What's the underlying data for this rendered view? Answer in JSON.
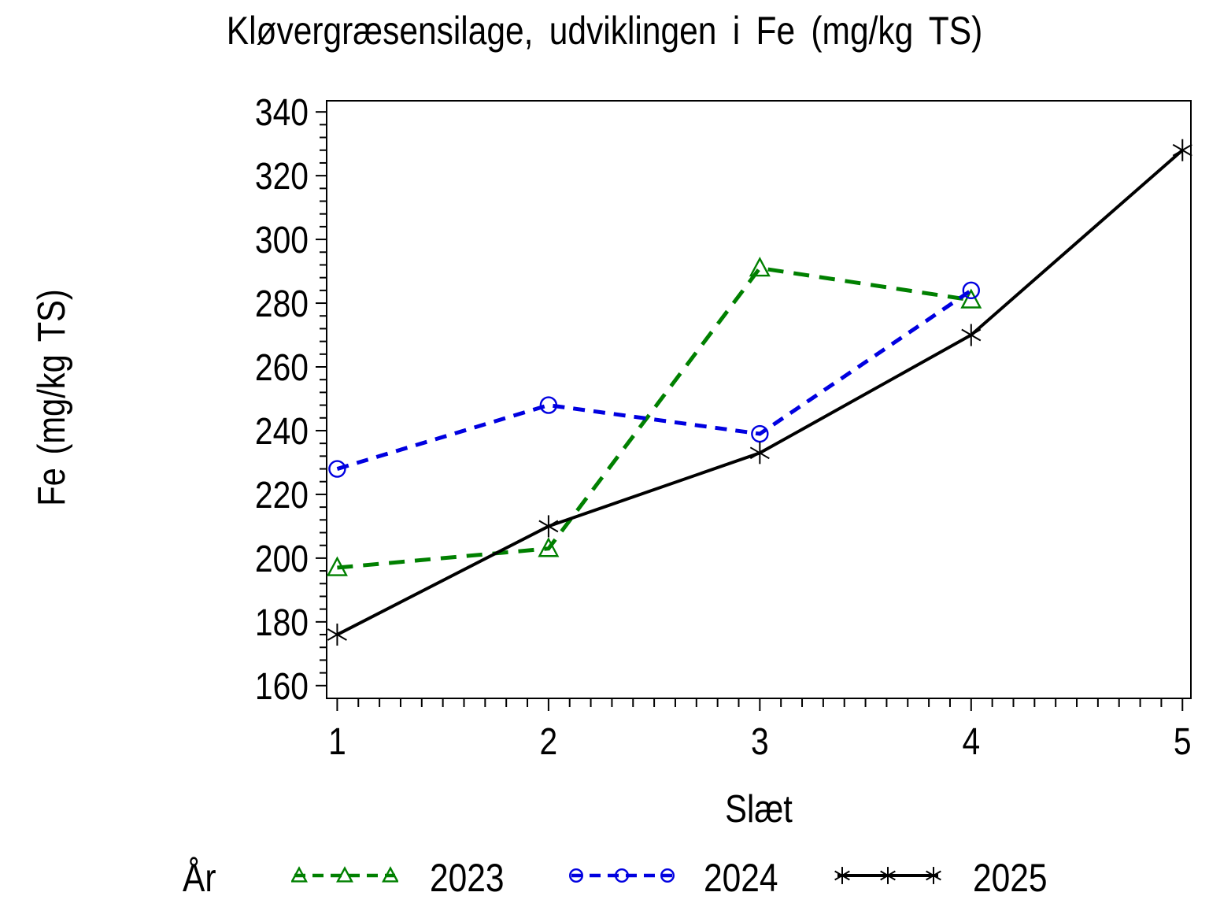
{
  "chart_data": {
    "type": "line",
    "title": "Kløvergræsensilage, udviklingen i Fe (mg/kg TS)",
    "xlabel": "Slæt",
    "ylabel": "Fe (mg/kg TS)",
    "legend_title": "År",
    "legend_position": "bottom",
    "grid": false,
    "xlim": [
      0.95,
      5.04
    ],
    "ylim": [
      156,
      343.5
    ],
    "x_ticks": [
      1,
      2,
      3,
      4,
      5
    ],
    "y_ticks": [
      160,
      180,
      200,
      220,
      240,
      260,
      280,
      300,
      320,
      340
    ],
    "x_minor_step": 0.1,
    "y_minor_step": 4,
    "axis_color": "#000000",
    "series": [
      {
        "name": "2023",
        "color": "#008000",
        "line_style": "dashed",
        "dash_pattern": "20 13",
        "marker": "triangle",
        "x": [
          1,
          2,
          3,
          4
        ],
        "values": [
          197,
          203,
          291,
          281
        ]
      },
      {
        "name": "2024",
        "color": "#0000E0",
        "line_style": "dashed",
        "dash_pattern": "15 11",
        "marker": "circle",
        "x": [
          1,
          2,
          3,
          4
        ],
        "values": [
          228,
          248,
          239,
          284
        ]
      },
      {
        "name": "2025",
        "color": "#000000",
        "line_style": "solid",
        "dash_pattern": "none",
        "marker": "asterisk",
        "x": [
          1,
          2,
          3,
          4,
          5
        ],
        "values": [
          176,
          210,
          233,
          270,
          328
        ]
      }
    ]
  }
}
